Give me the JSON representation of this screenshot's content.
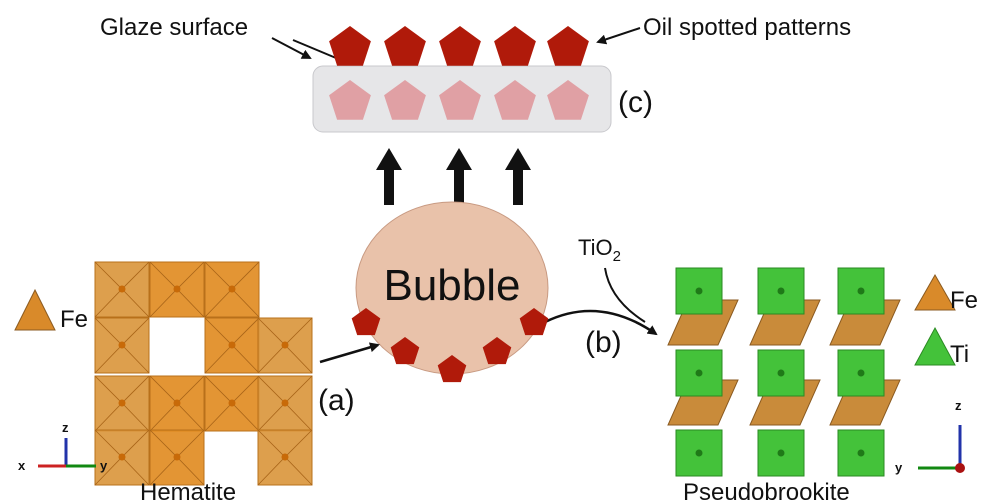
{
  "labels": {
    "glaze_surface": "Glaze surface",
    "oil_spotted_patterns": "Oil spotted patterns",
    "c": "(c)",
    "bubble": "Bubble",
    "a": "(a)",
    "b": "(b)",
    "tio2": {
      "base": "TiO",
      "sub": "2"
    }
  },
  "hematite": {
    "name": "Hematite",
    "legend": "Fe",
    "axes": {
      "z": "z",
      "x": "x",
      "y": "y"
    }
  },
  "pseudobrookite": {
    "name": "Pseudobrookite",
    "legend": [
      "Fe",
      "Ti"
    ],
    "axes": {
      "z": "z",
      "y": "y"
    }
  }
}
